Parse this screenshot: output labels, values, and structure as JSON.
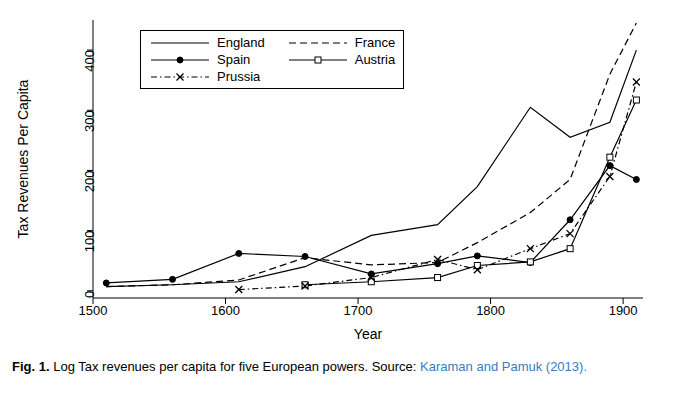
{
  "chart_data": {
    "type": "line",
    "caption_label": "Fig. 1.",
    "caption": "Log Tax revenues per capita for five European powers. Source:",
    "source": "Karaman and Pamuk (2013).",
    "x_label": "Year",
    "y_label": "Tax Revenues Per Capita",
    "x": [
      1510,
      1560,
      1610,
      1660,
      1710,
      1760,
      1790,
      1830,
      1860,
      1890,
      1910
    ],
    "xlim": [
      1500,
      1915
    ],
    "xticks": [
      1500,
      1600,
      1700,
      1800,
      1900
    ],
    "ylim": [
      -12,
      450
    ],
    "yticks": [
      0,
      100,
      200,
      300,
      400
    ],
    "legend": "upper left",
    "grid": false,
    "series": [
      {
        "name": "England",
        "color": "#000000",
        "line_style": "solid",
        "marker": "none",
        "values": [
          7,
          10,
          15,
          40,
          92,
          110,
          173,
          305,
          255,
          280,
          400
        ]
      },
      {
        "name": "France",
        "color": "#000000",
        "line_style": "dashed",
        "marker": "none",
        "values": [
          7,
          10,
          18,
          55,
          43,
          47,
          80,
          130,
          185,
          360,
          445
        ]
      },
      {
        "name": "Spain",
        "color": "#000000",
        "line_style": "solid",
        "marker": "circle",
        "values": [
          13,
          19,
          62,
          57,
          28,
          45,
          58,
          47,
          118,
          208,
          185
        ]
      },
      {
        "name": "Austria",
        "color": "#000000",
        "line_style": "solid",
        "marker": "square",
        "values": [
          null,
          null,
          null,
          10,
          15,
          22,
          42,
          48,
          70,
          222,
          317
        ]
      },
      {
        "name": "Prussia",
        "color": "#000000",
        "line_style": "dashdot",
        "marker": "x",
        "values": [
          null,
          null,
          2,
          8,
          22,
          52,
          35,
          70,
          95,
          190,
          347
        ]
      }
    ]
  }
}
